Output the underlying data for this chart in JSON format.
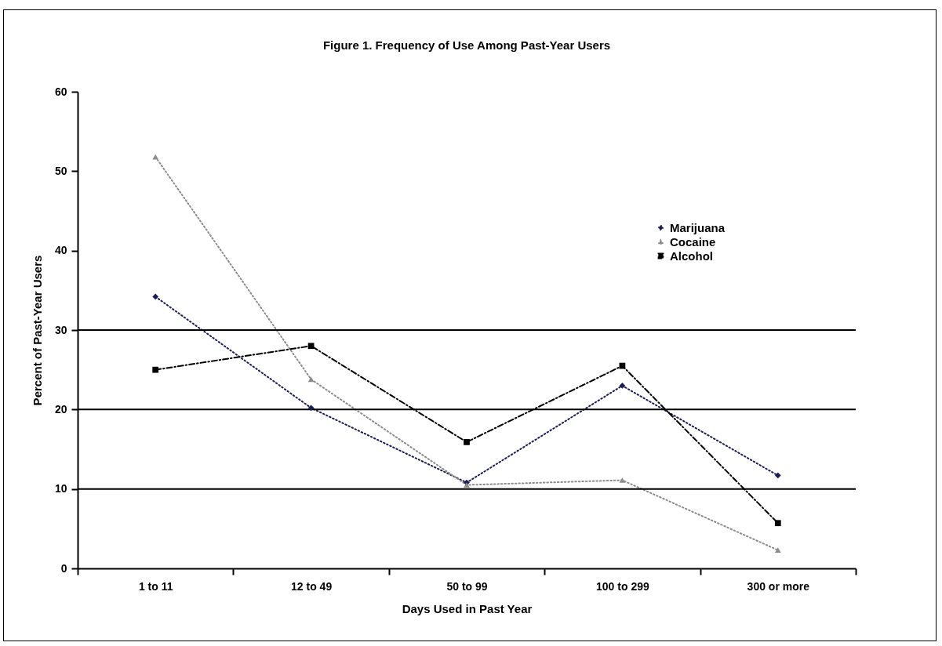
{
  "chart_data": {
    "type": "line",
    "title": "Figure 1.  Frequency of Use Among Past-Year Users",
    "xlabel": "Days Used in Past Year",
    "ylabel": "Percent of Past-Year Users",
    "categories": [
      "1 to 11",
      "12 to 49",
      "50 to 99",
      "100 to 299",
      "300 or more"
    ],
    "series": [
      {
        "name": "Marijuana",
        "color": "#1c1c5a",
        "marker": "diamond",
        "line_style": "dotted",
        "values": [
          34.2,
          20.2,
          10.8,
          23.0,
          11.7
        ]
      },
      {
        "name": "Cocaine",
        "color": "#8c8c8c",
        "marker": "triangle",
        "line_style": "dotted",
        "values": [
          51.8,
          23.8,
          10.5,
          11.1,
          2.3
        ]
      },
      {
        "name": "Alcohol",
        "color": "#000000",
        "marker": "square",
        "line_style": "dashed",
        "values": [
          25.0,
          28.0,
          15.9,
          25.5,
          5.7
        ]
      }
    ],
    "ylim": [
      0,
      60
    ],
    "yticks": [
      0,
      10,
      20,
      30,
      40,
      50,
      60
    ],
    "ref_lines": [
      {
        "axis": "y",
        "value": 10
      },
      {
        "axis": "y",
        "value": 20
      },
      {
        "axis": "y",
        "value": 30
      }
    ],
    "legend": "top right"
  }
}
